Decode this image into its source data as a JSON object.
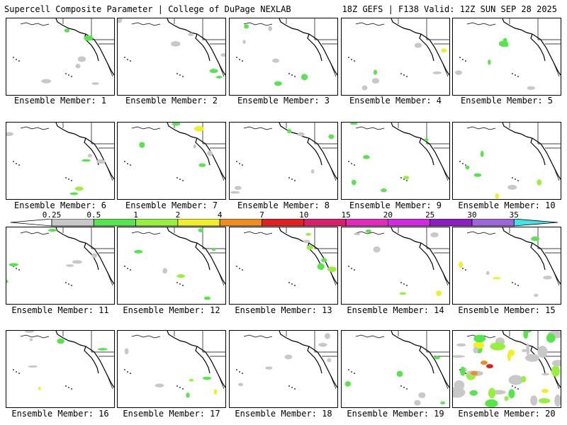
{
  "header": {
    "left_title": "Supercell Composite Parameter | College of DuPage NEXLAB",
    "right_title": "18Z GEFS | F138 Valid: 12Z SUN SEP 28 2025"
  },
  "panels": [
    {
      "label": "Ensemble Member: 1"
    },
    {
      "label": "Ensemble Member: 2"
    },
    {
      "label": "Ensemble Member: 3"
    },
    {
      "label": "Ensemble Member: 4"
    },
    {
      "label": "Ensemble Member: 5"
    },
    {
      "label": "Ensemble Member: 6"
    },
    {
      "label": "Ensemble Member: 7"
    },
    {
      "label": "Ensemble Member: 8"
    },
    {
      "label": "Ensemble Member: 9"
    },
    {
      "label": "Ensemble Member: 10"
    },
    {
      "label": "Ensemble Member: 11"
    },
    {
      "label": "Ensemble Member: 12"
    },
    {
      "label": "Ensemble Member: 13"
    },
    {
      "label": "Ensemble Member: 14"
    },
    {
      "label": "Ensemble Member: 15"
    },
    {
      "label": "Ensemble Member: 16"
    },
    {
      "label": "Ensemble Member: 17"
    },
    {
      "label": "Ensemble Member: 18"
    },
    {
      "label": "Ensemble Member: 19"
    },
    {
      "label": "Ensemble Member: 20"
    }
  ],
  "legend": {
    "labels": [
      "0.25",
      "0.5",
      "1",
      "2",
      "4",
      "7",
      "10",
      "15",
      "20",
      "25",
      "30",
      "35"
    ],
    "colors": [
      "#c8c8c8",
      "#55e64b",
      "#96f03c",
      "#f0f028",
      "#f08c1e",
      "#e61e1e",
      "#dc1e6e",
      "#e628be",
      "#d228e6",
      "#8c1ec8",
      "#a064dc",
      "#3ce6e6"
    ]
  }
}
